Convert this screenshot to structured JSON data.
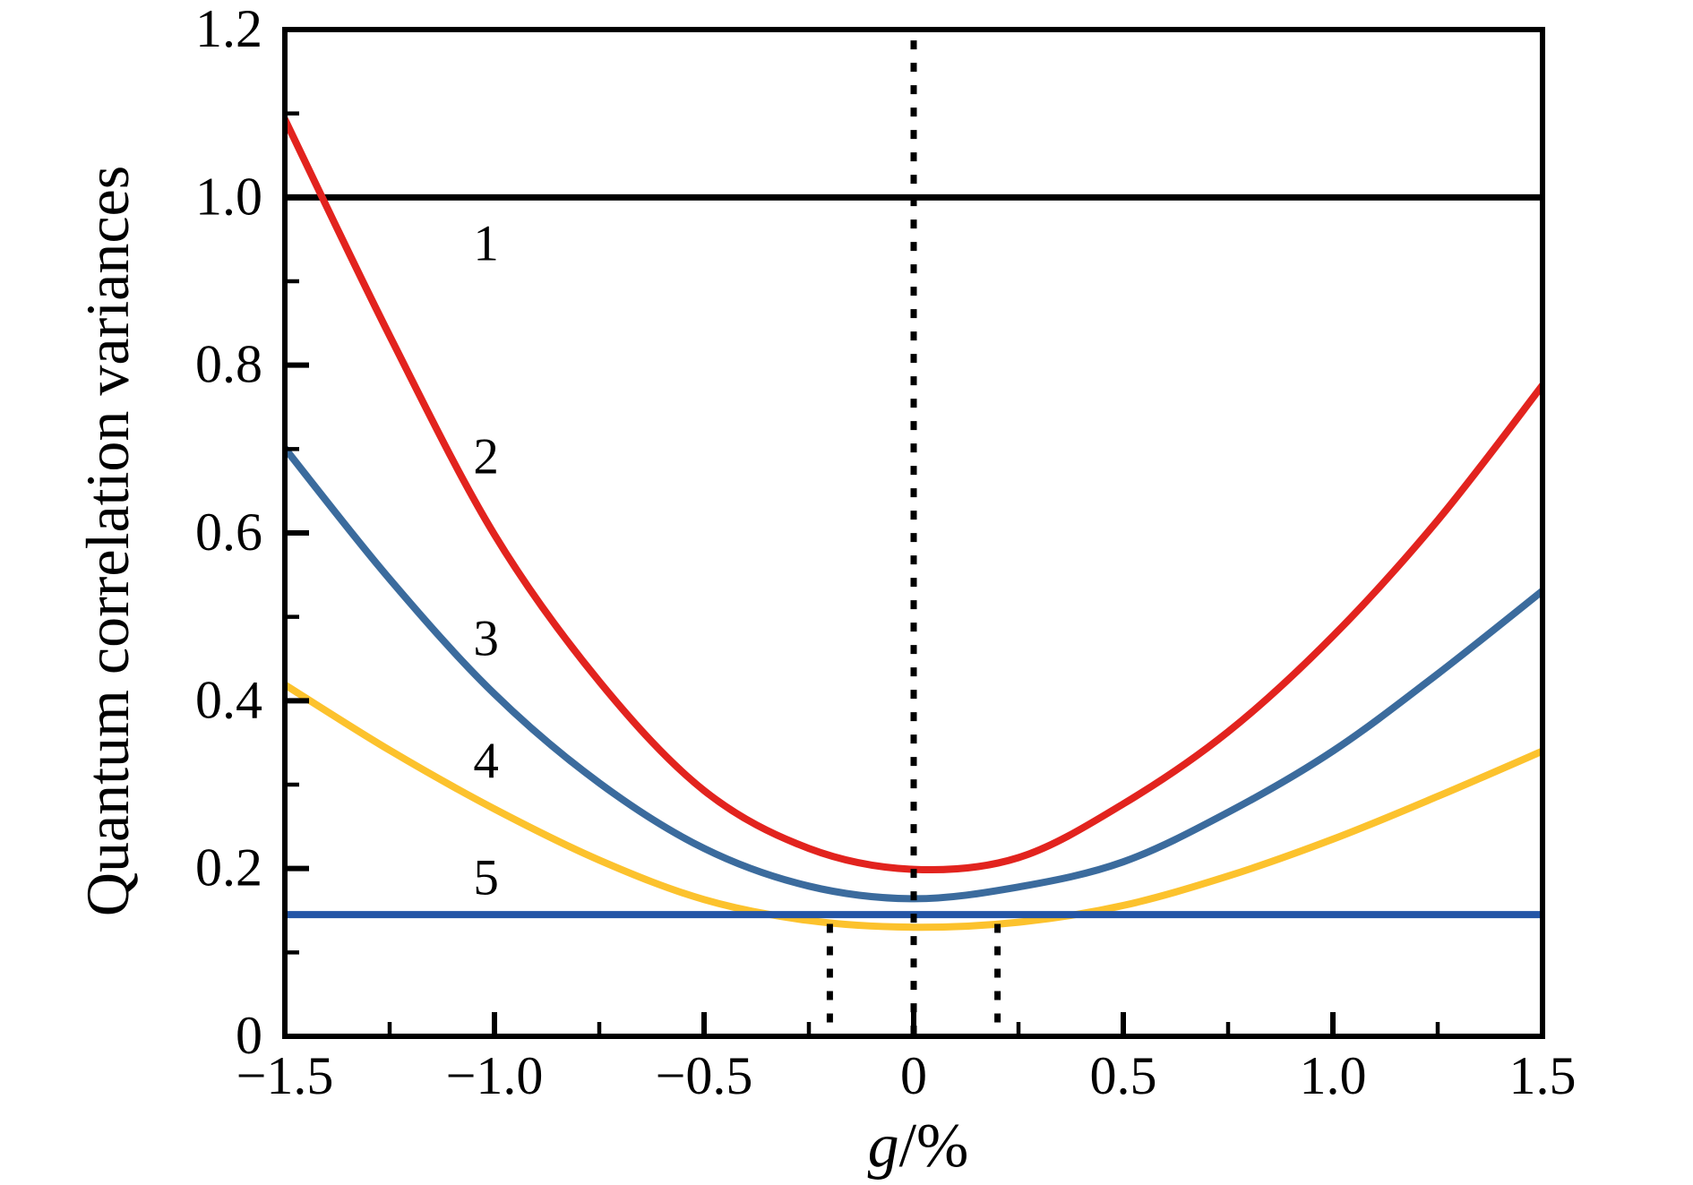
{
  "figure": {
    "background": "#ffffff",
    "frame_color": "#000000"
  },
  "chart_data": {
    "type": "line",
    "title": "",
    "xlabel": "g/%",
    "xlabel_parts": {
      "italic": "g",
      "regular": "/%"
    },
    "ylabel": "Quantum correlation variances",
    "xlim": [
      -1.5,
      1.5
    ],
    "ylim": [
      0,
      1.2
    ],
    "grid": false,
    "legend_position": "none",
    "x_axis": {
      "major_ticks": [
        -1.5,
        -1.0,
        -0.5,
        0,
        0.5,
        1.0,
        1.5
      ],
      "tick_labels": [
        "−1.5",
        "−1.0",
        "−0.5",
        "0",
        "0.5",
        "1.0",
        "1.5"
      ],
      "minor_ticks": [
        -1.25,
        -0.75,
        -0.25,
        0.25,
        0.75,
        1.25
      ]
    },
    "y_axis": {
      "major_ticks": [
        0,
        0.2,
        0.4,
        0.6,
        0.8,
        1.0,
        1.2
      ],
      "tick_labels": [
        "0",
        "0.2",
        "0.4",
        "0.6",
        "0.8",
        "1.0",
        "1.2"
      ],
      "minor_ticks": [
        0.1,
        0.3,
        0.5,
        0.7,
        0.9,
        1.1
      ]
    },
    "series": [
      {
        "id": "curve-1",
        "label": "1",
        "kind": "hline",
        "y": 1.0,
        "color": "#000000",
        "stroke_width": 7
      },
      {
        "id": "curve-4",
        "label": "4",
        "kind": "curve",
        "color": "#fcc22d",
        "stroke_width": 8,
        "x": [
          -1.5,
          -1.25,
          -1.0,
          -0.75,
          -0.5,
          -0.25,
          0,
          0.25,
          0.5,
          0.75,
          1.0,
          1.25,
          1.5
        ],
        "y": [
          0.419,
          0.341,
          0.271,
          0.21,
          0.163,
          0.138,
          0.13,
          0.136,
          0.156,
          0.191,
          0.235,
          0.286,
          0.34
        ]
      },
      {
        "id": "curve-5",
        "label": "5",
        "kind": "hline",
        "y": 0.145,
        "color": "#2355a6",
        "stroke_width": 8
      },
      {
        "id": "curve-3",
        "label": "3",
        "kind": "curve",
        "color": "#3b6b9d",
        "stroke_width": 8,
        "x": [
          -1.5,
          -1.25,
          -1.0,
          -0.75,
          -0.5,
          -0.25,
          0,
          0.25,
          0.5,
          0.75,
          1.0,
          1.25,
          1.5
        ],
        "y": [
          0.701,
          0.545,
          0.408,
          0.302,
          0.224,
          0.179,
          0.164,
          0.178,
          0.208,
          0.267,
          0.34,
          0.432,
          0.531
        ]
      },
      {
        "id": "curve-2",
        "label": "2",
        "kind": "curve",
        "color": "#e2231e",
        "stroke_width": 8,
        "x": [
          -1.5,
          -1.25,
          -1.0,
          -0.75,
          -0.5,
          -0.25,
          0,
          0.25,
          0.5,
          0.75,
          1.0,
          1.25,
          1.5
        ],
        "y": [
          1.093,
          0.835,
          0.598,
          0.423,
          0.293,
          0.224,
          0.199,
          0.213,
          0.277,
          0.363,
          0.477,
          0.615,
          0.776
        ]
      }
    ],
    "curve_labels": [
      {
        "text": "1",
        "x": -1.02,
        "y": 0.945
      },
      {
        "text": "2",
        "x": -1.02,
        "y": 0.691
      },
      {
        "text": "3",
        "x": -1.02,
        "y": 0.474
      },
      {
        "text": "4",
        "x": -1.02,
        "y": 0.328
      },
      {
        "text": "5",
        "x": -1.02,
        "y": 0.189
      }
    ],
    "guides": [
      {
        "id": "center-dotted",
        "x": 0,
        "y0": 0,
        "y1": 1.187,
        "color": "#000000",
        "width": 7,
        "dash": "10 15"
      },
      {
        "id": "left-dotted",
        "x": -0.2,
        "y0": 0,
        "y1": 0.134,
        "color": "#000000",
        "width": 7,
        "dash": "10 15"
      },
      {
        "id": "right-dotted",
        "x": 0.2,
        "y0": 0,
        "y1": 0.134,
        "color": "#000000",
        "width": 7,
        "dash": "10 15"
      }
    ]
  }
}
